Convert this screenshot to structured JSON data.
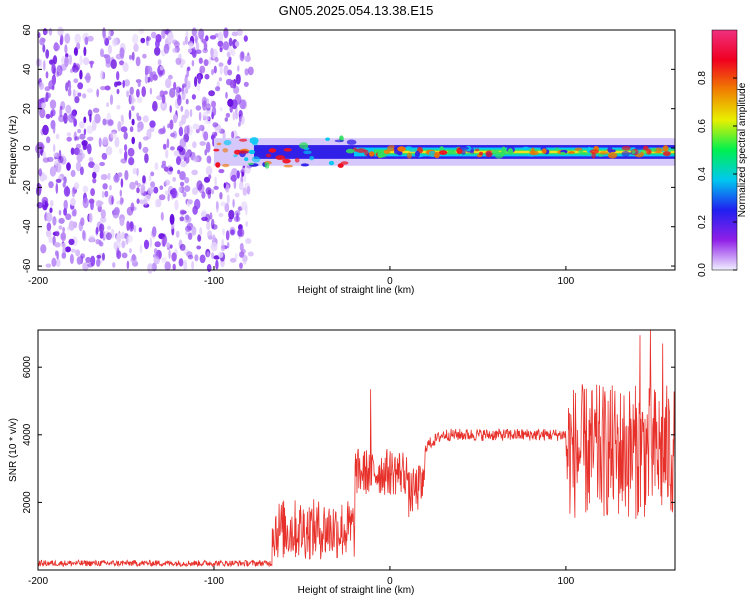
{
  "title": "GN05.2025.054.13.38.E15",
  "colors": {
    "noise": "#7a1ee8",
    "line": "#e8302a",
    "axis": "#000000"
  },
  "chart_data": [
    {
      "type": "heatmap",
      "name": "spectrogram",
      "xlabel": "Height of straight line (km)",
      "ylabel": "Frequency (Hz)",
      "xlim": [
        -200,
        162
      ],
      "ylim": [
        -62,
        60
      ],
      "x_ticks": [
        -200,
        -100,
        0,
        100
      ],
      "x_tick_labels": [
        "-200",
        "-100",
        "0",
        "100"
      ],
      "y_ticks": [
        60,
        40,
        20,
        0,
        -20,
        -40,
        -60
      ],
      "y_tick_labels": [
        "60",
        "40",
        "20",
        "0",
        "-20",
        "-40",
        "-60"
      ],
      "noise_region_x": [
        -200,
        -79
      ],
      "signal_band": {
        "x_start": -100,
        "x_end": 162,
        "center_hz": -2,
        "halfwidth_hz": 5
      },
      "colorbar": {
        "label": "Normalized spectral amplitude",
        "range": [
          0,
          1
        ],
        "ticks": [
          0.0,
          0.2,
          0.4,
          0.6,
          0.8
        ],
        "tick_labels": [
          "0.0",
          "0.2",
          "0.4",
          "0.6",
          "0.8"
        ],
        "stops": [
          "#f0f0ff",
          "#9020e8",
          "#2020f0",
          "#00c8f0",
          "#00f050",
          "#e8f000",
          "#f08000",
          "#f00020",
          "#f03080"
        ]
      }
    },
    {
      "type": "line",
      "name": "snr",
      "xlabel": "Height of straight line (km)",
      "ylabel": "SNR (10 * v/v)",
      "xlim": [
        -200,
        162
      ],
      "ylim": [
        0,
        7100
      ],
      "x_ticks": [
        -200,
        -100,
        0,
        100
      ],
      "x_tick_labels": [
        "-200",
        "-100",
        "0",
        "100"
      ],
      "y_ticks": [
        2000,
        4000,
        6000
      ],
      "y_tick_labels": [
        "2000",
        "4000",
        "6000"
      ],
      "segments": [
        {
          "x": [
            -200,
            -67
          ],
          "mean": 200,
          "amp": 90
        },
        {
          "x": [
            -67,
            -20
          ],
          "mean": 1200,
          "amp": 900
        },
        {
          "x": [
            -20,
            20
          ],
          "mean": 2900,
          "amp": 700
        },
        {
          "x": [
            20,
            100
          ],
          "mean": 4000,
          "amp": 180
        },
        {
          "x": [
            100,
            162
          ],
          "mean": 3500,
          "amp": 2000
        }
      ],
      "peaks": [
        {
          "x": -11,
          "y": 5350
        },
        {
          "x": 142,
          "y": 6950
        },
        {
          "x": 148,
          "y": 7100
        },
        {
          "x": 155,
          "y": 6700
        }
      ]
    }
  ]
}
